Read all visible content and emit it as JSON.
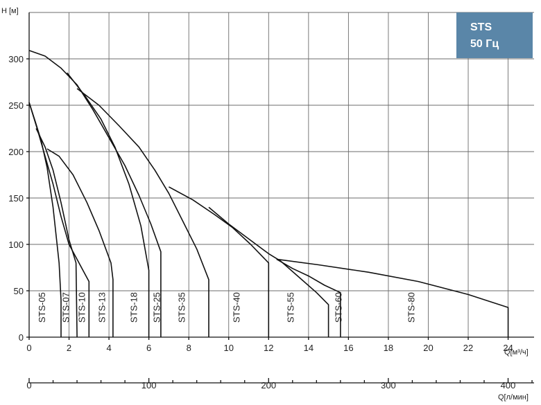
{
  "badge": {
    "line1": "STS",
    "line2": "50 Гц"
  },
  "chart_data": {
    "type": "line",
    "ylabel": "H [м]",
    "xlabel": "Q[м³/ч]",
    "x2label": "Q[л/мин]",
    "xlim": [
      0,
      25.3
    ],
    "ylim": [
      0,
      350
    ],
    "x2lim": [
      0,
      421.7
    ],
    "grid": true,
    "xticks": [
      0,
      2,
      4,
      6,
      8,
      10,
      12,
      14,
      16,
      18,
      20,
      22,
      24
    ],
    "yticks": [
      0,
      50,
      100,
      150,
      200,
      250,
      300
    ],
    "x2ticks_major": [
      0,
      100,
      200,
      300,
      400
    ],
    "x2ticks_minor": [
      20,
      40,
      60,
      80,
      120,
      140,
      160,
      180,
      220,
      240,
      260,
      280,
      320,
      340,
      360,
      380,
      420
    ],
    "series": [
      {
        "name": "STS-05",
        "label_x": 0.8,
        "label_y": 32,
        "points": [
          [
            0,
            253
          ],
          [
            0.3,
            233
          ],
          [
            0.6,
            212
          ],
          [
            0.9,
            183
          ],
          [
            1.2,
            140
          ],
          [
            1.5,
            80
          ],
          [
            1.6,
            40
          ],
          [
            1.6,
            0
          ]
        ]
      },
      {
        "name": "STS-07",
        "label_x": 2.0,
        "label_y": 32,
        "points": [
          [
            0.35,
            225
          ],
          [
            0.8,
            205
          ],
          [
            1.2,
            180
          ],
          [
            1.6,
            145
          ],
          [
            2.0,
            105
          ],
          [
            2.35,
            80
          ],
          [
            2.4,
            0
          ]
        ]
      },
      {
        "name": "STS-10",
        "label_x": 2.8,
        "label_y": 32,
        "points": [
          [
            0,
            253
          ],
          [
            0.4,
            225
          ],
          [
            0.8,
            195
          ],
          [
            1.2,
            165
          ],
          [
            1.6,
            130
          ],
          [
            2.0,
            100
          ],
          [
            2.5,
            80
          ],
          [
            3.0,
            60
          ],
          [
            3.0,
            0
          ]
        ]
      },
      {
        "name": "STS-13",
        "label_x": 3.8,
        "label_y": 32,
        "points": [
          [
            0.9,
            203
          ],
          [
            1.5,
            195
          ],
          [
            2.2,
            175
          ],
          [
            2.9,
            145
          ],
          [
            3.5,
            115
          ],
          [
            4.1,
            80
          ],
          [
            4.2,
            62
          ],
          [
            4.2,
            0
          ]
        ]
      },
      {
        "name": "STS-18",
        "label_x": 5.4,
        "label_y": 32,
        "points": [
          [
            1.9,
            285
          ],
          [
            2.8,
            260
          ],
          [
            3.6,
            235
          ],
          [
            4.3,
            205
          ],
          [
            5.0,
            165
          ],
          [
            5.6,
            120
          ],
          [
            6.0,
            72
          ],
          [
            6.0,
            0
          ]
        ]
      },
      {
        "name": "STS-25",
        "label_x": 6.55,
        "label_y": 32,
        "points": [
          [
            0,
            309
          ],
          [
            0.8,
            303
          ],
          [
            1.6,
            290
          ],
          [
            2.4,
            272
          ],
          [
            3.2,
            245
          ],
          [
            4.0,
            215
          ],
          [
            4.8,
            185
          ],
          [
            5.5,
            153
          ],
          [
            6.1,
            122
          ],
          [
            6.6,
            92
          ],
          [
            6.6,
            0
          ]
        ]
      },
      {
        "name": "STS-35",
        "label_x": 7.8,
        "label_y": 32,
        "points": [
          [
            2.4,
            268
          ],
          [
            3.5,
            250
          ],
          [
            4.5,
            228
          ],
          [
            5.5,
            205
          ],
          [
            6.3,
            180
          ],
          [
            7.0,
            155
          ],
          [
            7.7,
            125
          ],
          [
            8.4,
            95
          ],
          [
            9.0,
            62
          ],
          [
            9.0,
            0
          ]
        ]
      },
      {
        "name": "STS-40",
        "label_x": 10.55,
        "label_y": 32,
        "points": [
          [
            7.0,
            162
          ],
          [
            8.2,
            148
          ],
          [
            9.3,
            132
          ],
          [
            10.2,
            118
          ],
          [
            11.1,
            100
          ],
          [
            12.0,
            80
          ],
          [
            12.0,
            0
          ]
        ]
      },
      {
        "name": "STS-55",
        "label_x": 13.25,
        "label_y": 32,
        "points": [
          [
            9.0,
            140
          ],
          [
            10.0,
            122
          ],
          [
            11.0,
            106
          ],
          [
            12.0,
            90
          ],
          [
            12.6,
            82
          ],
          [
            13.5,
            65
          ],
          [
            14.4,
            48
          ],
          [
            15.0,
            35
          ],
          [
            15.0,
            0
          ]
        ]
      },
      {
        "name": "STS-60",
        "label_x": 15.65,
        "label_y": 32,
        "points": [
          [
            12.4,
            84
          ],
          [
            13.2,
            74
          ],
          [
            14.0,
            66
          ],
          [
            14.8,
            56
          ],
          [
            15.6,
            48
          ],
          [
            15.6,
            0
          ]
        ]
      },
      {
        "name": "STS-80",
        "label_x": 19.3,
        "label_y": 32,
        "points": [
          [
            12.4,
            84
          ],
          [
            14.5,
            78
          ],
          [
            17.0,
            70
          ],
          [
            19.5,
            60
          ],
          [
            22.0,
            46
          ],
          [
            24.0,
            32
          ],
          [
            24.0,
            0
          ]
        ]
      }
    ]
  }
}
